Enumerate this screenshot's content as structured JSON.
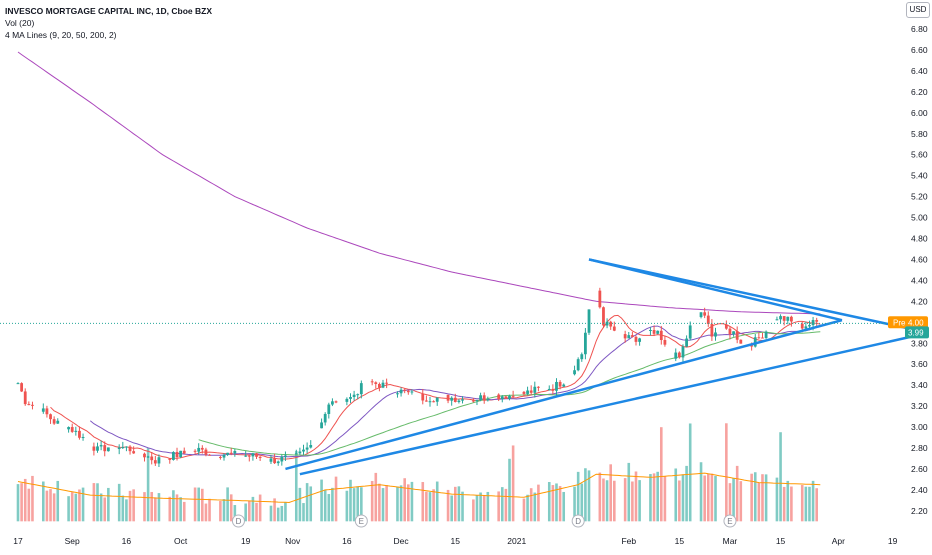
{
  "legend": {
    "title": "INVESCO MORTGAGE CAPITAL INC, 1D, Cboe BZX",
    "volume": "Vol (20)",
    "ma": "4 MA Lines (9, 20, 50, 200, 2)"
  },
  "currency": "USD",
  "badges": {
    "pre_label": "Pre",
    "pre_value": "4.00",
    "last_value": "3.99"
  },
  "colors": {
    "up": "#26a69a",
    "down": "#ef5350",
    "vol_up": "#80cbc4",
    "vol_down": "#f7a29f",
    "ma9": "#ef5350",
    "ma20": "#7e57c2",
    "ma50": "#66bb6a",
    "ma200": "#ab47bc",
    "vol_ma": "#ff9800",
    "trendline": "#1e88e5",
    "pre_badge": "#ff9800",
    "last_badge": "#26a69a"
  },
  "chart_data": {
    "type": "candlestick",
    "symbol": "INVESCO MORTGAGE CAPITAL INC",
    "interval": "1D",
    "exchange": "Cboe BZX",
    "y_ticks": [
      "2.20",
      "2.40",
      "2.60",
      "2.80",
      "3.00",
      "3.20",
      "3.40",
      "3.60",
      "3.80",
      "4.00",
      "4.20",
      "4.40",
      "4.60",
      "4.80",
      "5.00",
      "5.20",
      "5.40",
      "5.60",
      "5.80",
      "6.00",
      "6.20",
      "6.40",
      "6.60",
      "6.80"
    ],
    "y_range": [
      2.05,
      6.92
    ],
    "x_ticks": [
      "17",
      "Sep",
      "16",
      "Oct",
      "19",
      "Nov",
      "16",
      "Dec",
      "15",
      "2021",
      "Feb",
      "15",
      "Mar",
      "15",
      "Apr",
      "19"
    ],
    "x_tick_days": [
      0,
      15,
      30,
      45,
      63,
      76,
      91,
      106,
      121,
      138,
      169,
      183,
      197,
      211,
      227,
      242
    ],
    "date_axis": {
      "start": "2020-08-17",
      "end": "2021-04-23"
    },
    "ohlc_anchors": [
      [
        0,
        3.42
      ],
      [
        2,
        3.25
      ],
      [
        6,
        3.18
      ],
      [
        10,
        3.05
      ],
      [
        14,
        3.0
      ],
      [
        18,
        2.9
      ],
      [
        22,
        2.78
      ],
      [
        26,
        2.82
      ],
      [
        30,
        2.8
      ],
      [
        34,
        2.75
      ],
      [
        38,
        2.68
      ],
      [
        42,
        2.72
      ],
      [
        46,
        2.75
      ],
      [
        50,
        2.78
      ],
      [
        54,
        2.75
      ],
      [
        58,
        2.74
      ],
      [
        62,
        2.73
      ],
      [
        66,
        2.72
      ],
      [
        70,
        2.68
      ],
      [
        74,
        2.7
      ],
      [
        77,
        2.72
      ],
      [
        80,
        2.8
      ],
      [
        83,
        3.0
      ],
      [
        86,
        3.2
      ],
      [
        89,
        3.28
      ],
      [
        92,
        3.28
      ],
      [
        95,
        3.38
      ],
      [
        98,
        3.42
      ],
      [
        101,
        3.4
      ],
      [
        104,
        3.36
      ],
      [
        108,
        3.32
      ],
      [
        112,
        3.28
      ],
      [
        116,
        3.28
      ],
      [
        120,
        3.28
      ],
      [
        124,
        3.26
      ],
      [
        128,
        3.28
      ],
      [
        132,
        3.3
      ],
      [
        136,
        3.3
      ],
      [
        140,
        3.32
      ],
      [
        144,
        3.36
      ],
      [
        148,
        3.38
      ],
      [
        152,
        3.46
      ],
      [
        156,
        3.7
      ],
      [
        158,
        4.12
      ],
      [
        160,
        4.3
      ],
      [
        162,
        4.0
      ],
      [
        165,
        3.92
      ],
      [
        168,
        3.85
      ],
      [
        171,
        3.82
      ],
      [
        174,
        3.9
      ],
      [
        177,
        3.88
      ],
      [
        180,
        3.7
      ],
      [
        183,
        3.66
      ],
      [
        186,
        3.95
      ],
      [
        189,
        4.1
      ],
      [
        192,
        3.9
      ],
      [
        195,
        3.94
      ],
      [
        198,
        3.9
      ],
      [
        201,
        3.78
      ],
      [
        204,
        3.82
      ],
      [
        207,
        3.92
      ],
      [
        210,
        4.05
      ],
      [
        213,
        4.02
      ],
      [
        216,
        3.96
      ],
      [
        219,
        3.98
      ],
      [
        221,
        4.0
      ],
      [
        222,
        3.99
      ]
    ],
    "volume_anchors": [
      [
        0,
        2.48
      ],
      [
        20,
        2.35
      ],
      [
        40,
        2.32
      ],
      [
        60,
        2.3
      ],
      [
        75,
        2.28
      ],
      [
        85,
        2.4
      ],
      [
        100,
        2.45
      ],
      [
        120,
        2.36
      ],
      [
        140,
        2.33
      ],
      [
        155,
        2.45
      ],
      [
        160,
        2.55
      ],
      [
        175,
        2.52
      ],
      [
        190,
        2.56
      ],
      [
        205,
        2.47
      ],
      [
        222,
        2.45
      ]
    ],
    "volume_axis_note": "volume panel shares price y-scale at bottom; bars are relative height",
    "moving_averages": [
      {
        "period": 9,
        "color": "#ef5350"
      },
      {
        "period": 20,
        "color": "#7e57c2"
      },
      {
        "period": 50,
        "color": "#66bb6a"
      },
      {
        "period": 200,
        "color": "#ab47bc",
        "anchors": [
          [
            0,
            6.58
          ],
          [
            20,
            6.1
          ],
          [
            40,
            5.6
          ],
          [
            60,
            5.2
          ],
          [
            80,
            4.9
          ],
          [
            100,
            4.66
          ],
          [
            120,
            4.48
          ],
          [
            140,
            4.34
          ],
          [
            160,
            4.2
          ],
          [
            180,
            4.14
          ],
          [
            200,
            4.1
          ],
          [
            222,
            4.08
          ]
        ]
      }
    ],
    "trendlines": [
      {
        "from": [
          158,
          4.6
        ],
        "to": [
          228,
          4.02
        ]
      },
      {
        "from": [
          158,
          4.6
        ],
        "to": [
          252,
          3.9
        ]
      },
      {
        "from": [
          74,
          2.6
        ],
        "to": [
          228,
          4.02
        ]
      },
      {
        "from": [
          78,
          2.55
        ],
        "to": [
          252,
          3.9
        ]
      }
    ],
    "events": [
      {
        "day": 61,
        "label": "D"
      },
      {
        "day": 95,
        "label": "E"
      },
      {
        "day": 155,
        "label": "D"
      },
      {
        "day": 197,
        "label": "E"
      }
    ],
    "last_price": 3.99,
    "pre_market_price": 4.0
  }
}
